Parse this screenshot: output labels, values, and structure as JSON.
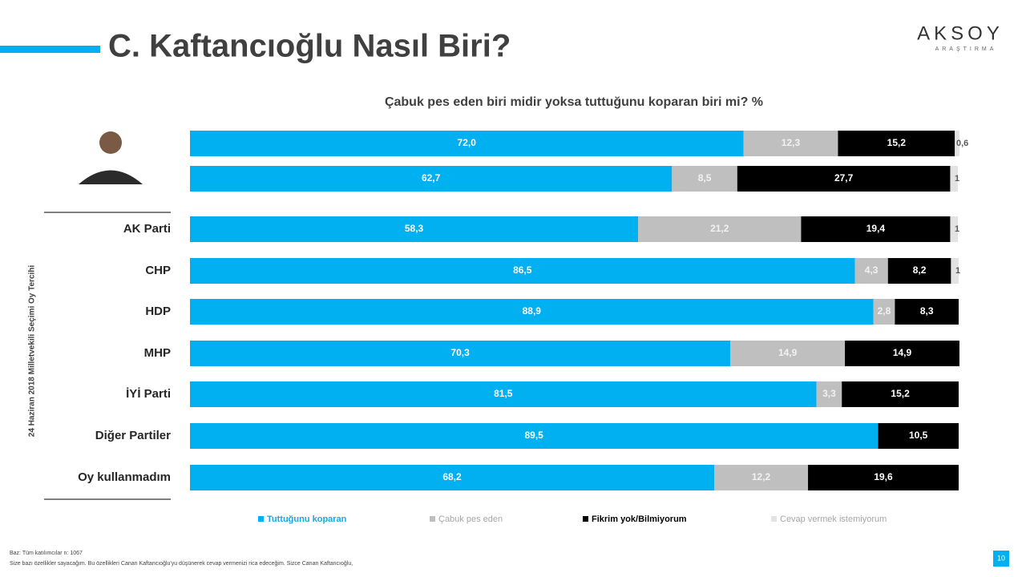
{
  "chart_data": {
    "type": "stacked-bar-horizontal",
    "title": "C. Kaftancıoğlu Nasıl Biri?",
    "subtitle": "Çabuk pes eden biri midir yoksa tuttuğunu koparan biri mi? %",
    "y_label": "24 Haziran 2018 Milletvekili Seçimi Oy Tercihi",
    "categories": [
      null,
      null,
      "AK Parti",
      "CHP",
      "HDP",
      "MHP",
      "İYİ Parti",
      "Diğer Partiler",
      "Oy kullanmadım"
    ],
    "xlim": [
      0,
      100
    ],
    "series": [
      {
        "name": "Tuttuğunu koparan",
        "color": "#00b0f0",
        "values": [
          72.0,
          62.7,
          58.3,
          86.5,
          88.9,
          70.3,
          81.5,
          89.5,
          68.2
        ],
        "value_labels": [
          "72,0",
          "62,7",
          "58,3",
          "86,5",
          "88,9",
          "70,3",
          "81,5",
          "89,5",
          "68,2"
        ]
      },
      {
        "name": "Çabuk pes eden",
        "color": "#bfbfbf",
        "values": [
          12.3,
          8.5,
          21.2,
          4.3,
          2.8,
          14.9,
          3.3,
          null,
          12.2
        ],
        "value_labels": [
          "12,3",
          "8,5",
          "21,2",
          "4,3",
          "2,8",
          "14,9",
          "3,3",
          null,
          "12,2"
        ]
      },
      {
        "name": "Fikrim yok/Bilmiyorum",
        "color": "#000000",
        "values": [
          15.2,
          27.7,
          19.4,
          8.2,
          8.3,
          14.9,
          15.2,
          10.5,
          19.6
        ],
        "value_labels": [
          "15,2",
          "27,7",
          "19,4",
          "8,2",
          "8,3",
          "14,9",
          "15,2",
          "10,5",
          "19,6"
        ]
      },
      {
        "name": "Cevap vermek istemiyorum",
        "color": "#e3e3e3",
        "values": [
          0.6,
          1,
          1,
          1,
          null,
          null,
          null,
          null,
          null
        ],
        "value_labels": [
          "0,6",
          "1",
          "1",
          "1",
          null,
          null,
          null,
          null,
          null
        ]
      }
    ]
  },
  "logo": {
    "name": "AKSOY",
    "sub": "ARAŞTIRMA"
  },
  "footer": [
    "Baz: Tüm katılımcılar  n: 1067",
    "Size bazı özellikler sayacağım.  Bu özellikleri Canan Kaftancıoğlu'yu  düşünerek cevap vermenizi rica edeceğim. Sizce Canan Kaftancıoğlu,"
  ],
  "page_number": "10"
}
